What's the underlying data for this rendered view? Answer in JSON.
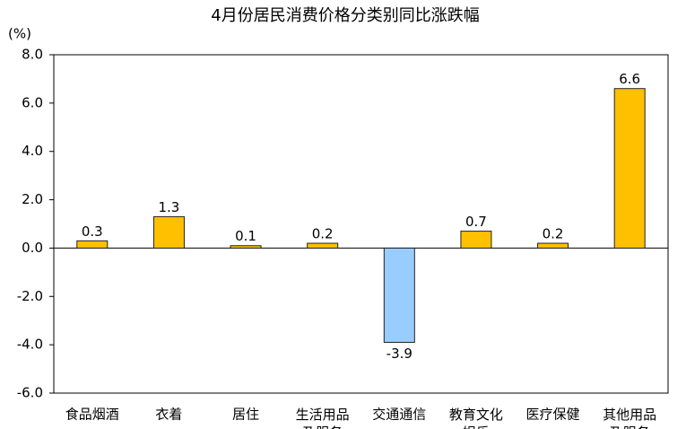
{
  "chart_data": {
    "type": "bar",
    "title": "4月份居民消费价格分类别同比涨跌幅",
    "y_label": "(%)",
    "categories": [
      "食品烟酒",
      "衣着",
      "居住",
      "生活用品及服务",
      "交通通信",
      "教育文化娱乐",
      "医疗保健",
      "其他用品及服务"
    ],
    "values": [
      0.3,
      1.3,
      0.1,
      0.2,
      -3.9,
      0.7,
      0.2,
      6.6
    ],
    "colors": [
      "#ffc000",
      "#ffc000",
      "#ffc000",
      "#ffc000",
      "#99ccff",
      "#ffc000",
      "#ffc000",
      "#ffc000"
    ],
    "ylim": [
      -6,
      8
    ],
    "yticks": [
      {
        "value": -6,
        "label": "-6.0"
      },
      {
        "value": -4,
        "label": "-4.0"
      },
      {
        "value": -2,
        "label": "-2.0"
      },
      {
        "value": 0,
        "label": "0.0"
      },
      {
        "value": 2,
        "label": "2.0"
      },
      {
        "value": 4,
        "label": "4.0"
      },
      {
        "value": 6,
        "label": "6.0"
      },
      {
        "value": 8,
        "label": "8.0"
      }
    ]
  }
}
